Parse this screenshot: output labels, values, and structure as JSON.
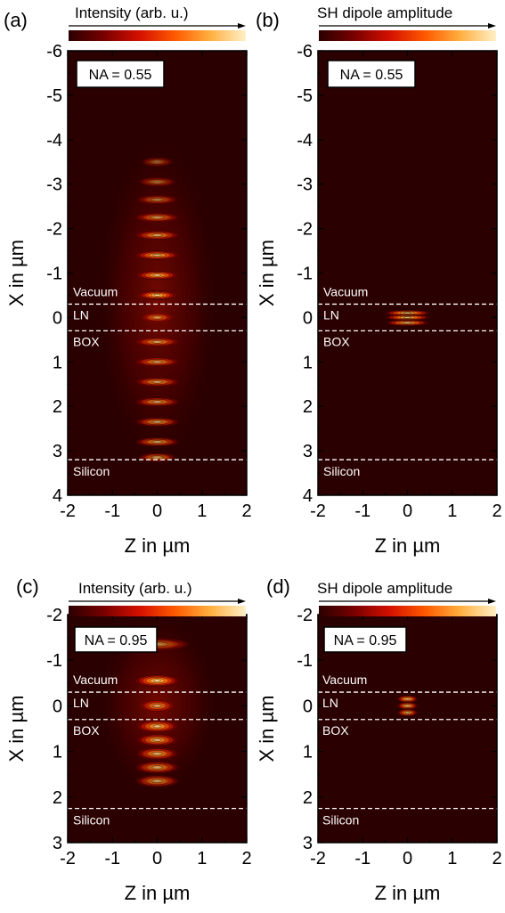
{
  "colors": {
    "field_dark": "#2a0000",
    "colormap": [
      "#2a0000",
      "#7a0000",
      "#d41000",
      "#ff5a00",
      "#ffb040",
      "#fff0c8"
    ],
    "boundary_line": "#ffffff",
    "contour": "#000000"
  },
  "chart_data": [
    {
      "panel": "(a)",
      "type": "heatmap",
      "colorbar_label": "Intensity (arb. u.)",
      "na_label": "NA = 0.55",
      "xlabel": "Z in µm",
      "ylabel": "X in µm",
      "xlim": [
        -2,
        2
      ],
      "ylim": [
        -6,
        4
      ],
      "x_ticks": [
        "-2",
        "-1",
        "0",
        "1",
        "2"
      ],
      "y_ticks": [
        "-6",
        "-5",
        "-4",
        "-3",
        "-2",
        "-1",
        "0",
        "1",
        "2",
        "3",
        "4"
      ],
      "layers": [
        {
          "name": "Vacuum",
          "boundary": -0.3
        },
        {
          "name": "LN",
          "boundary": 0.3
        },
        {
          "name": "BOX",
          "boundary": null
        },
        {
          "name": "Silicon",
          "boundary": 3.2
        }
      ],
      "peaks": [
        {
          "x": -3.5,
          "amp": 0.12,
          "w": 0.22
        },
        {
          "x": -3.05,
          "amp": 0.18,
          "w": 0.26
        },
        {
          "x": -2.65,
          "amp": 0.3,
          "w": 0.28
        },
        {
          "x": -2.25,
          "amp": 0.45,
          "w": 0.3
        },
        {
          "x": -1.85,
          "amp": 0.6,
          "w": 0.3
        },
        {
          "x": -1.4,
          "amp": 0.78,
          "w": 0.3
        },
        {
          "x": -0.95,
          "amp": 0.85,
          "w": 0.28
        },
        {
          "x": -0.5,
          "amp": 1.0,
          "w": 0.26
        },
        {
          "x": 0.0,
          "amp": 0.45,
          "w": 0.22
        },
        {
          "x": 0.55,
          "amp": 0.55,
          "w": 0.3
        },
        {
          "x": 1.0,
          "amp": 0.55,
          "w": 0.3
        },
        {
          "x": 1.45,
          "amp": 0.55,
          "w": 0.3
        },
        {
          "x": 1.9,
          "amp": 0.55,
          "w": 0.3
        },
        {
          "x": 2.35,
          "amp": 0.55,
          "w": 0.3
        },
        {
          "x": 2.8,
          "amp": 0.55,
          "w": 0.3
        },
        {
          "x": 3.15,
          "amp": 0.45,
          "w": 0.26
        }
      ]
    },
    {
      "panel": "(b)",
      "type": "heatmap",
      "colorbar_label": "SH dipole amplitude",
      "na_label": "NA = 0.55",
      "xlabel": "Z in µm",
      "ylabel": "X in µm",
      "xlim": [
        -2,
        2
      ],
      "ylim": [
        -6,
        4
      ],
      "x_ticks": [
        "-2",
        "-1",
        "0",
        "1",
        "2"
      ],
      "y_ticks": [
        "-6",
        "-5",
        "-4",
        "-3",
        "-2",
        "-1",
        "0",
        "1",
        "2",
        "3",
        "4"
      ],
      "layers": [
        {
          "name": "Vacuum",
          "boundary": -0.3
        },
        {
          "name": "LN",
          "boundary": 0.3
        },
        {
          "name": "BOX",
          "boundary": null
        },
        {
          "name": "Silicon",
          "boundary": 3.2
        }
      ],
      "peaks": [
        {
          "x": -0.1,
          "amp": 1.0,
          "w": 0.52
        },
        {
          "x": 0.0,
          "amp": 0.9,
          "w": 0.52
        },
        {
          "x": 0.12,
          "amp": 0.8,
          "w": 0.5
        }
      ]
    },
    {
      "panel": "(c)",
      "type": "heatmap",
      "colorbar_label": "Intensity (arb. u.)",
      "na_label": "NA = 0.95",
      "xlabel": "Z in µm",
      "ylabel": "X in µm",
      "xlim": [
        -2,
        2
      ],
      "ylim": [
        -2,
        3
      ],
      "x_ticks": [
        "-2",
        "-1",
        "0",
        "1",
        "2"
      ],
      "y_ticks": [
        "-2",
        "-1",
        "0",
        "1",
        "2",
        "3"
      ],
      "layers": [
        {
          "name": "Vacuum",
          "boundary": -0.3
        },
        {
          "name": "LN",
          "boundary": 0.3
        },
        {
          "name": "BOX",
          "boundary": null
        },
        {
          "name": "Silicon",
          "boundary": 2.25
        }
      ],
      "peaks": [
        {
          "x": -1.35,
          "amp": 0.35,
          "w": 0.45
        },
        {
          "x": -0.55,
          "amp": 1.0,
          "w": 0.3
        },
        {
          "x": 0.0,
          "amp": 0.55,
          "w": 0.24
        },
        {
          "x": 0.45,
          "amp": 0.8,
          "w": 0.28
        },
        {
          "x": 0.75,
          "amp": 0.7,
          "w": 0.28
        },
        {
          "x": 1.05,
          "amp": 0.65,
          "w": 0.28
        },
        {
          "x": 1.35,
          "amp": 0.55,
          "w": 0.3
        },
        {
          "x": 1.65,
          "amp": 0.5,
          "w": 0.3
        }
      ]
    },
    {
      "panel": "(d)",
      "type": "heatmap",
      "colorbar_label": "SH dipole amplitude",
      "na_label": "NA = 0.95",
      "xlabel": "Z in µm",
      "ylabel": "X in µm",
      "xlim": [
        -2,
        2
      ],
      "ylim": [
        -2,
        3
      ],
      "x_ticks": [
        "-2",
        "-1",
        "0",
        "1",
        "2"
      ],
      "y_ticks": [
        "-2",
        "-1",
        "0",
        "1",
        "2",
        "3"
      ],
      "layers": [
        {
          "name": "Vacuum",
          "boundary": -0.3
        },
        {
          "name": "LN",
          "boundary": 0.3
        },
        {
          "name": "BOX",
          "boundary": null
        },
        {
          "name": "Silicon",
          "boundary": 2.25
        }
      ],
      "peaks": [
        {
          "x": -0.15,
          "amp": 1.0,
          "w": 0.24
        },
        {
          "x": 0.0,
          "amp": 0.85,
          "w": 0.24
        },
        {
          "x": 0.15,
          "amp": 0.75,
          "w": 0.24
        }
      ]
    }
  ]
}
